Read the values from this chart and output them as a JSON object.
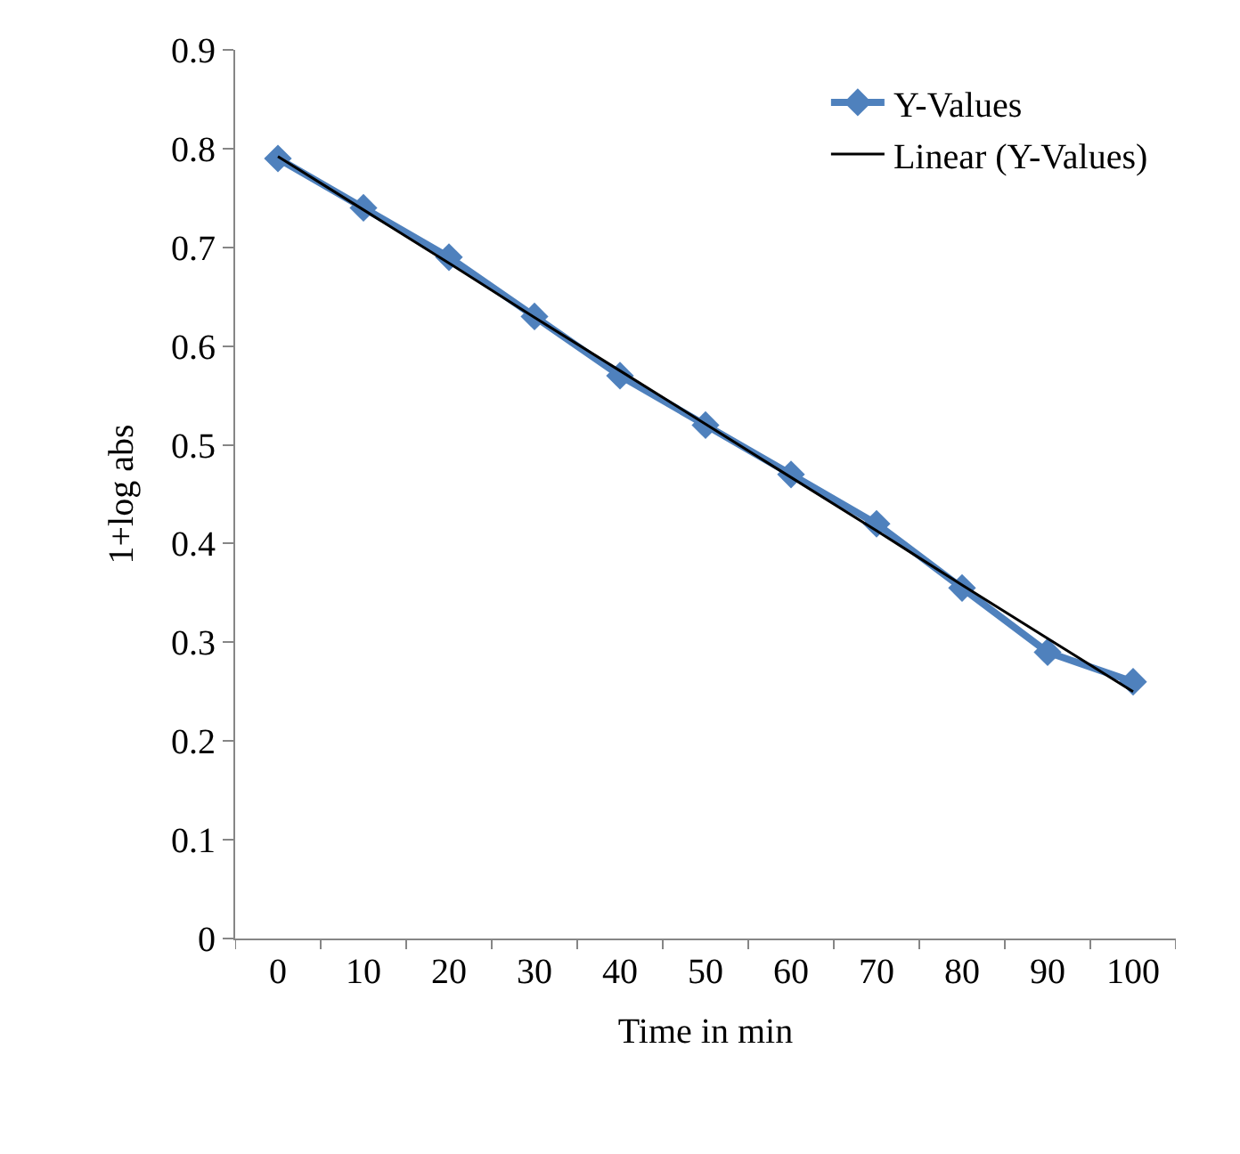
{
  "chart_data": {
    "type": "line",
    "xlabel": "Time in min",
    "ylabel": "1+log abs",
    "categories": [
      "0",
      "10",
      "20",
      "30",
      "40",
      "50",
      "60",
      "70",
      "80",
      "90",
      "100"
    ],
    "series": [
      {
        "name": "Y-Values",
        "color": "#4f81bd",
        "marker": "diamond",
        "values": [
          0.79,
          0.74,
          0.69,
          0.63,
          0.57,
          0.52,
          0.47,
          0.42,
          0.355,
          0.29,
          0.26
        ]
      },
      {
        "name": "Linear (Y-Values)",
        "color": "#000000",
        "marker": "none",
        "values": [
          0.792,
          0.738,
          0.684,
          0.629,
          0.575,
          0.521,
          0.467,
          0.413,
          0.358,
          0.304,
          0.25
        ]
      }
    ],
    "ylim": [
      0,
      0.9
    ],
    "yticks": [
      0,
      0.1,
      0.2,
      0.3,
      0.4,
      0.5,
      0.6,
      0.7,
      0.8,
      0.9
    ],
    "legend": "top right"
  }
}
